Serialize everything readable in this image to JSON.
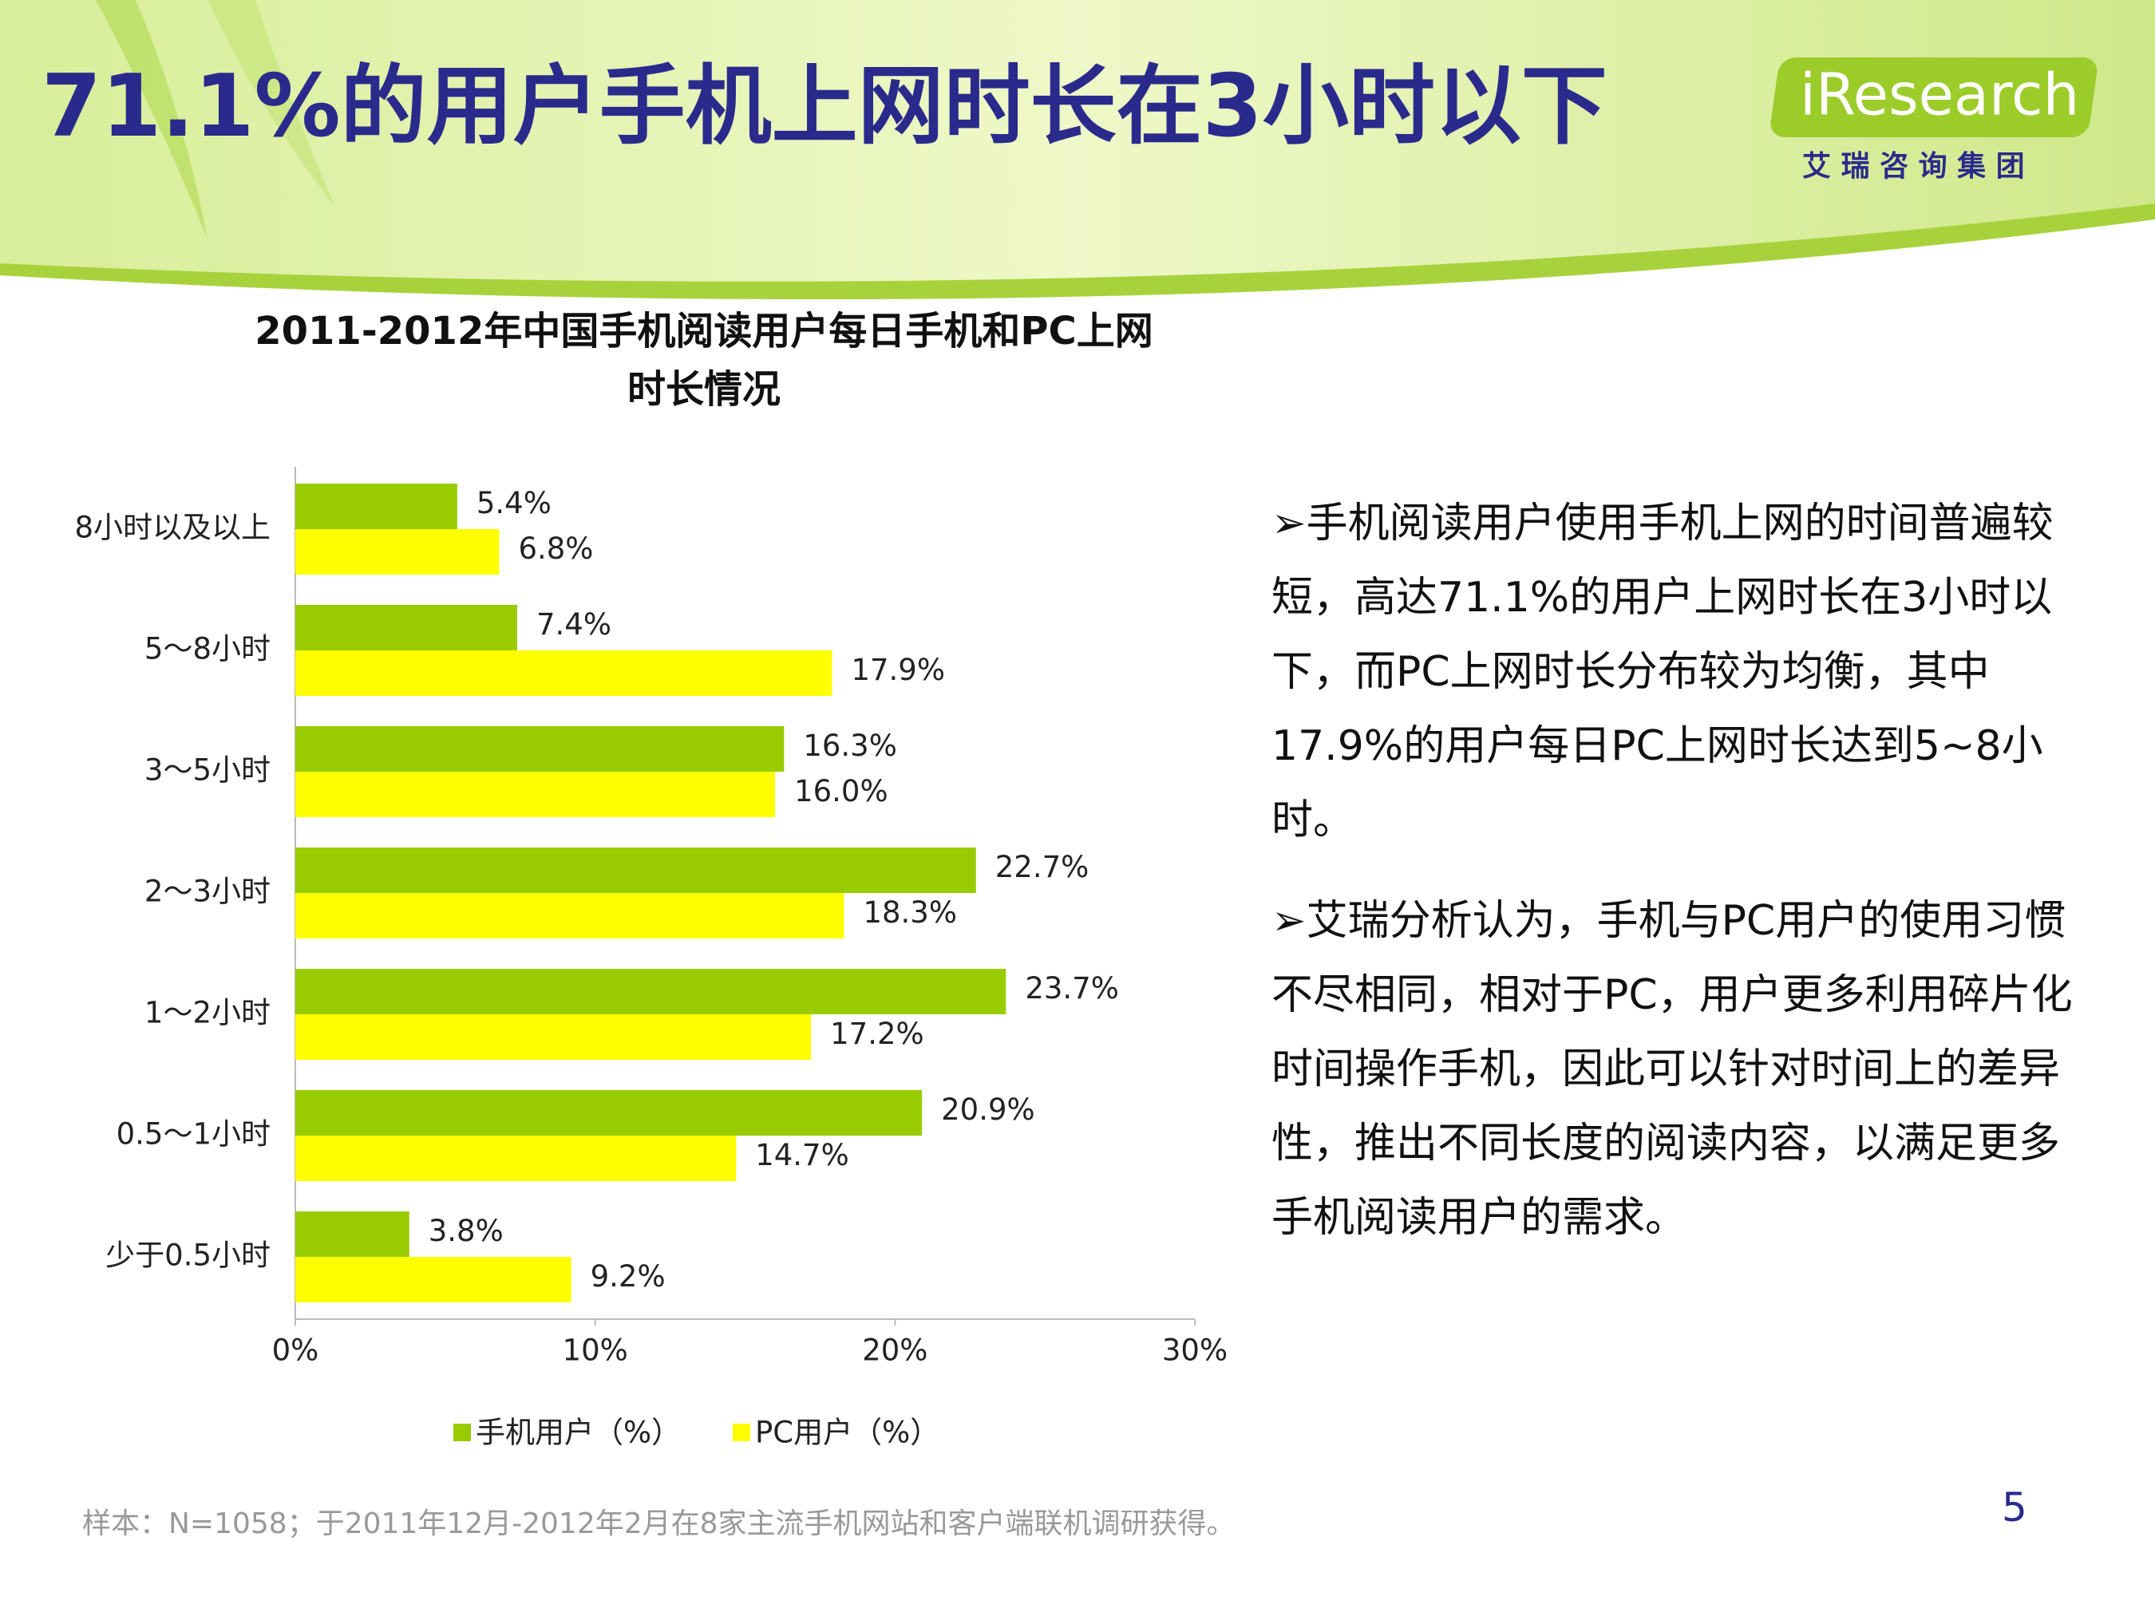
{
  "header": {
    "title": "71.1%的用户手机上网时长在3小时以下",
    "logo": "iResearch",
    "logo_subtitle": "艾 瑞 咨 询 集 团"
  },
  "chart_data": {
    "type": "bar",
    "orientation": "horizontal",
    "title": [
      "2011-2012年中国手机阅读用户每日手机和PC上网",
      "时长情况"
    ],
    "categories": [
      "8小时以及以上",
      "5～8小时",
      "3～5小时",
      "2～3小时",
      "1～2小时",
      "0.5～1小时",
      "少于0.5小时"
    ],
    "series": [
      {
        "name": "手机用户（%）",
        "color": "#99cc00",
        "values": [
          5.4,
          7.4,
          16.3,
          22.7,
          23.7,
          20.9,
          3.8
        ],
        "value_labels": [
          "5.4%",
          "7.4%",
          "16.3%",
          "22.7%",
          "23.7%",
          "20.9%",
          "3.8%"
        ]
      },
      {
        "name": "PC用户（%）",
        "color": "#ffff00",
        "values": [
          6.8,
          17.9,
          16.0,
          18.3,
          17.2,
          14.7,
          9.2
        ],
        "value_labels": [
          "6.8%",
          "17.9%",
          "16.0%",
          "18.3%",
          "17.2%",
          "14.7%",
          "9.2%"
        ]
      }
    ],
    "xlim": [
      0,
      30
    ],
    "xticks": [
      {
        "value": 0,
        "label": "0%"
      },
      {
        "value": 10,
        "label": "10%"
      },
      {
        "value": 20,
        "label": "20%"
      },
      {
        "value": 30,
        "label": "30%"
      }
    ],
    "legend": "bottom",
    "grid": false
  },
  "bullets": [
    "➢手机阅读用户使用手机上网的时间普遍较短，高达71.1%的用户上网时长在3小时以下，而PC上网时长分布较为均衡，其中17.9%的用户每日PC上网时长达到5~8小时。",
    "➢艾瑞分析认为，手机与PC用户的使用习惯不尽相同，相对于PC，用户更多利用碎片化时间操作手机，因此可以针对时间上的差异性，推出不同长度的阅读内容，以满足更多手机阅读用户的需求。"
  ],
  "footer": {
    "note": "样本：N=1058；于2011年12月-2012年2月在8家主流手机网站和客户端联机调研获得。",
    "page": "5"
  }
}
